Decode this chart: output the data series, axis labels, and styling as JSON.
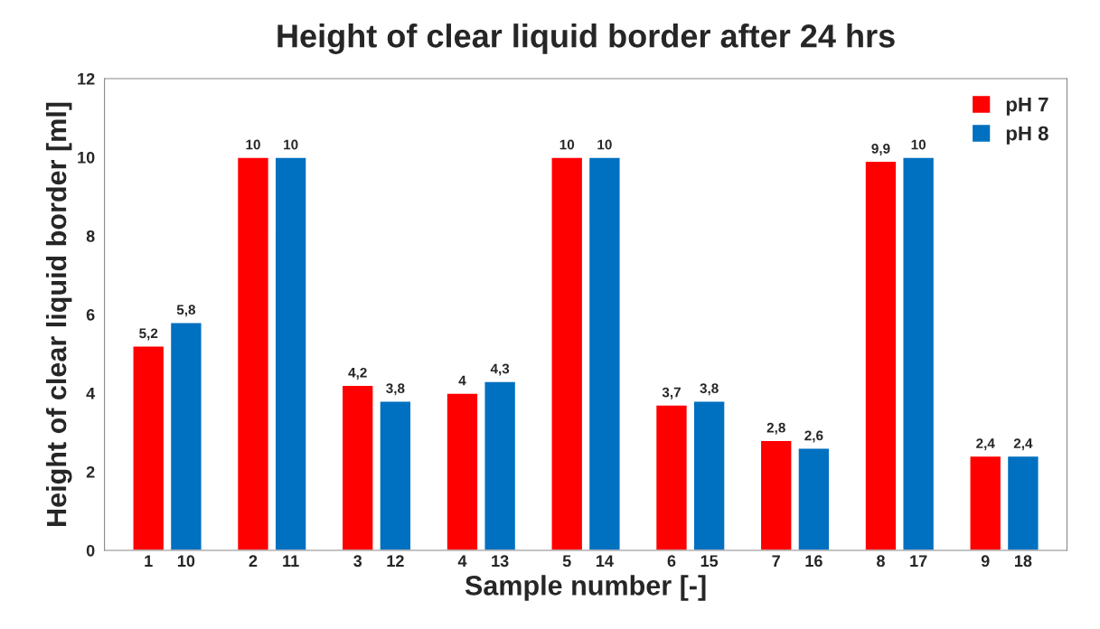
{
  "chart_data": {
    "type": "bar",
    "title": "Height of clear liquid border after 24 hrs",
    "xlabel": "Sample number [-]",
    "ylabel": "Height of clear liquid border [ml]",
    "categories": [
      "1",
      "10",
      "2",
      "11",
      "3",
      "12",
      "4",
      "13",
      "5",
      "14",
      "6",
      "15",
      "7",
      "16",
      "8",
      "17",
      "9",
      "18"
    ],
    "series": [
      {
        "name": "pH 7",
        "color": "#ff0000",
        "values": [
          5.2,
          null,
          10,
          null,
          4.2,
          null,
          4,
          null,
          10,
          null,
          3.7,
          null,
          2.8,
          null,
          9.9,
          null,
          2.4,
          null
        ],
        "value_labels": [
          "5,2",
          null,
          "10",
          null,
          "4,2",
          null,
          "4",
          null,
          "10",
          null,
          "3,7",
          null,
          "2,8",
          null,
          "9,9",
          null,
          "2,4",
          null
        ]
      },
      {
        "name": "pH 8",
        "color": "#0070c0",
        "values": [
          null,
          5.8,
          null,
          10,
          null,
          3.8,
          null,
          4.3,
          null,
          10,
          null,
          3.8,
          null,
          2.6,
          null,
          10,
          null,
          2.4
        ],
        "value_labels": [
          null,
          "5,8",
          null,
          "10",
          null,
          "3,8",
          null,
          "4,3",
          null,
          "10",
          null,
          "3,8",
          null,
          "2,6",
          null,
          "10",
          null,
          "2,4"
        ]
      }
    ],
    "ylim": [
      0,
      12
    ],
    "yticks": [
      0,
      2,
      4,
      6,
      8,
      10,
      12
    ],
    "grid": false,
    "legend": "top right"
  }
}
